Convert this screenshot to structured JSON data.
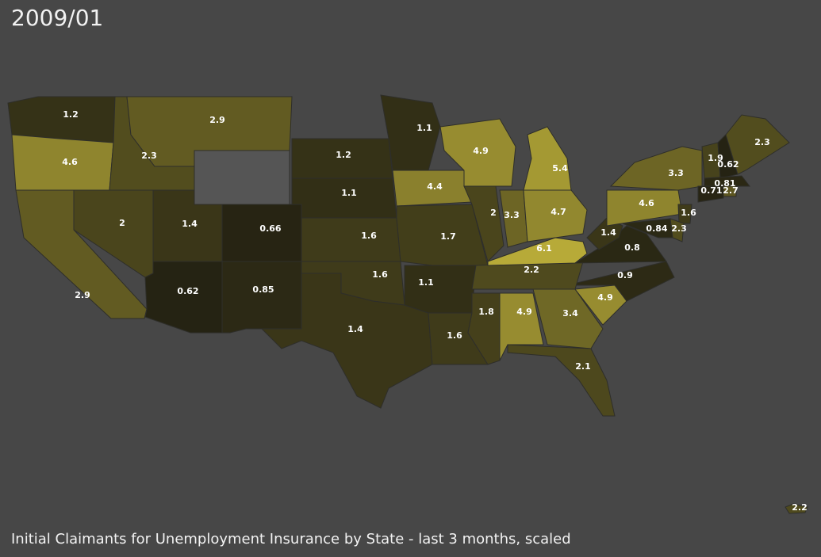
{
  "title": "2009/01",
  "caption": "Initial Claimants for Unemployment Insurance by State - last 3 months, scaled",
  "regions": [
    1.2,
    4.6,
    2.9,
    2,
    2.3,
    2.9,
    1.4,
    0.66,
    0.62,
    0.85,
    1.2,
    1.1,
    1.6,
    1.6,
    1.4,
    1.1,
    4.4,
    1.7,
    1.1,
    1.6,
    1.8,
    4.9,
    3.4,
    2.1,
    4.9,
    0.9,
    2.2,
    6.1,
    0.8,
    1.4,
    2,
    3.3,
    4.7,
    5.4,
    4.9,
    4.6,
    3.3,
    1.6,
    0.84,
    2.3,
    1.9,
    0.62,
    0.81,
    0.71,
    2.7,
    2.3,
    2.2
  ]
}
